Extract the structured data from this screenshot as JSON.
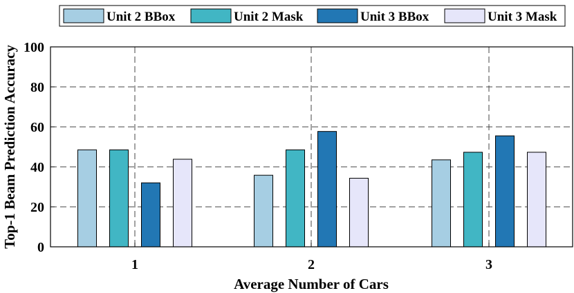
{
  "chart_data": {
    "type": "bar",
    "xlabel": "Average Number of Cars",
    "ylabel": "Top-1 Beam Prediction Accuracy",
    "categories": [
      "1",
      "2",
      "3"
    ],
    "ylim": [
      0,
      100
    ],
    "yticks": [
      "0",
      "20",
      "40",
      "60",
      "80",
      "100"
    ],
    "grid": true,
    "legend_position": "top",
    "series": [
      {
        "name": "Unit 2 BBox",
        "color": "#a6cee3",
        "values": [
          48.5,
          35.8,
          43.5
        ]
      },
      {
        "name": "Unit 2 Mask",
        "color": "#41b6c4",
        "values": [
          48.5,
          48.5,
          47.3
        ]
      },
      {
        "name": "Unit 3 BBox",
        "color": "#2277b4",
        "values": [
          32.0,
          57.7,
          55.5
        ]
      },
      {
        "name": "Unit 3 Mask",
        "color": "#e6e6fa",
        "values": [
          43.8,
          34.3,
          47.3
        ]
      }
    ]
  }
}
